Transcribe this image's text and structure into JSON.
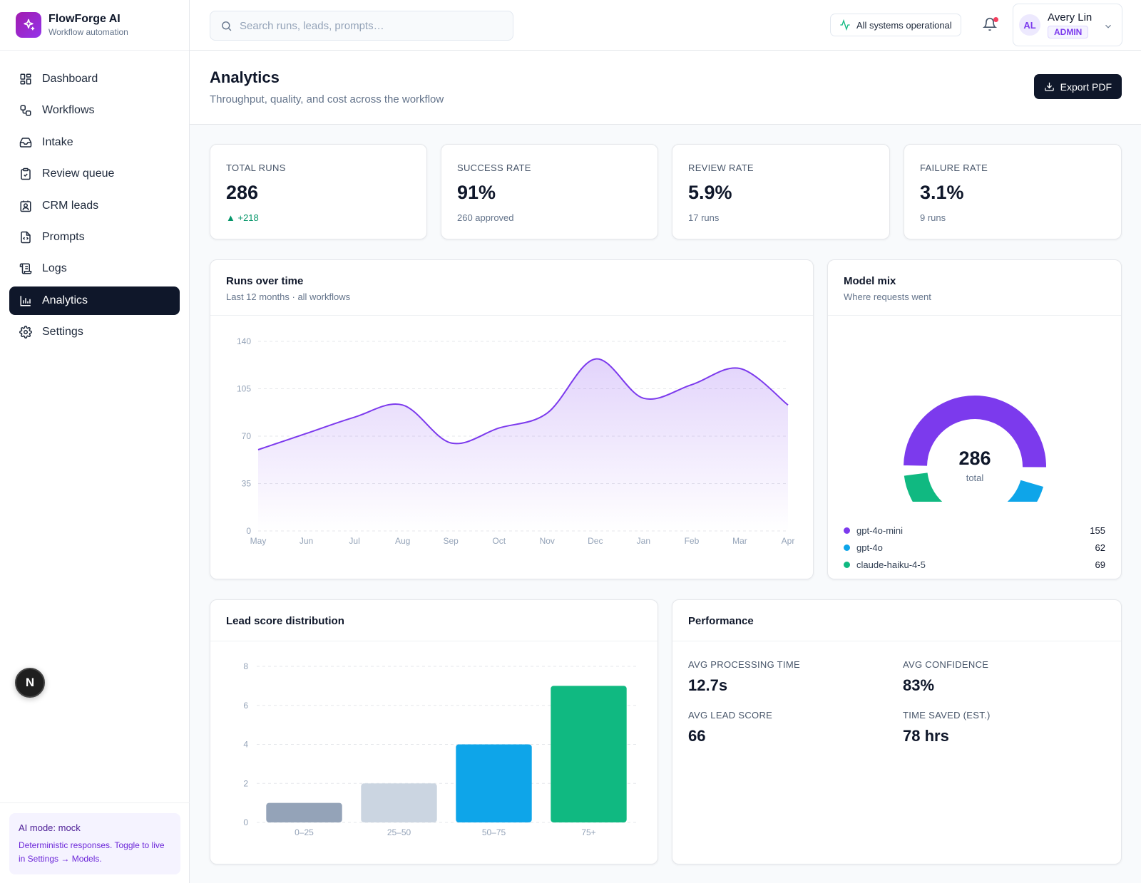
{
  "brand": {
    "name": "FlowForge AI",
    "subtitle": "Workflow automation"
  },
  "sidebar": {
    "items": [
      {
        "label": "Dashboard",
        "icon": "dashboard-icon"
      },
      {
        "label": "Workflows",
        "icon": "workflow-icon"
      },
      {
        "label": "Intake",
        "icon": "inbox-icon"
      },
      {
        "label": "Review queue",
        "icon": "clipboard-check-icon"
      },
      {
        "label": "CRM leads",
        "icon": "contact-icon"
      },
      {
        "label": "Prompts",
        "icon": "file-code-icon"
      },
      {
        "label": "Logs",
        "icon": "scroll-icon"
      },
      {
        "label": "Analytics",
        "icon": "bar-chart-icon",
        "active": true
      },
      {
        "label": "Settings",
        "icon": "gear-icon"
      }
    ],
    "fab_label": "N",
    "ai_mode": {
      "title": "AI mode: mock",
      "description": "Deterministic responses. Toggle to live in Settings → Models."
    }
  },
  "topbar": {
    "search_placeholder": "Search runs, leads, prompts…",
    "status": "All systems operational",
    "notifications_unread": true,
    "user": {
      "initials": "AL",
      "name": "Avery Lin",
      "role": "ADMIN"
    }
  },
  "page": {
    "title": "Analytics",
    "subtitle": "Throughput, quality, and cost across the workflow",
    "export_label": "Export PDF"
  },
  "kpis": [
    {
      "label": "TOTAL RUNS",
      "value": "286",
      "sub": "▲ +218",
      "trend": "up"
    },
    {
      "label": "SUCCESS RATE",
      "value": "91%",
      "sub": "260 approved"
    },
    {
      "label": "REVIEW RATE",
      "value": "5.9%",
      "sub": "17 runs"
    },
    {
      "label": "FAILURE RATE",
      "value": "3.1%",
      "sub": "9 runs"
    }
  ],
  "runs_card": {
    "title": "Runs over time",
    "subtitle": "Last 12 months · all workflows"
  },
  "model_card": {
    "title": "Model mix",
    "subtitle": "Where requests went",
    "center_value": "286",
    "center_label": "total"
  },
  "lead_card": {
    "title": "Lead score distribution"
  },
  "performance": {
    "title": "Performance",
    "items": [
      {
        "label": "AVG PROCESSING TIME",
        "value": "12.7s"
      },
      {
        "label": "AVG CONFIDENCE",
        "value": "83%"
      },
      {
        "label": "AVG LEAD SCORE",
        "value": "66"
      },
      {
        "label": "TIME SAVED (EST.)",
        "value": "78 hrs"
      }
    ]
  },
  "colors": {
    "accent": "#7c3aed",
    "blue": "#0ea5e9",
    "green": "#10b981",
    "navy": "#0f172a"
  },
  "chart_data": [
    {
      "type": "area",
      "categories": [
        "May",
        "Jun",
        "Jul",
        "Aug",
        "Sep",
        "Oct",
        "Nov",
        "Dec",
        "Jan",
        "Feb",
        "Mar",
        "Apr"
      ],
      "values": [
        60,
        72,
        84,
        93,
        65,
        76,
        87,
        127,
        98,
        108,
        120,
        93
      ],
      "ylim": [
        0,
        140
      ],
      "yticks": [
        0,
        35,
        70,
        105,
        140
      ],
      "grid": true,
      "color": "#7c3aed"
    },
    {
      "type": "pie",
      "donut": true,
      "labels": [
        "gpt-4o-mini",
        "gpt-4o",
        "claude-haiku-4-5"
      ],
      "values": [
        155,
        62,
        69
      ],
      "colors": [
        "#7c3aed",
        "#0ea5e9",
        "#10b981"
      ]
    },
    {
      "type": "bar",
      "categories": [
        "0–25",
        "25–50",
        "50–75",
        "75+"
      ],
      "values": [
        1,
        2,
        4,
        7
      ],
      "ylim": [
        0,
        8
      ],
      "yticks": [
        0,
        2,
        4,
        6,
        8
      ],
      "grid": true,
      "colors": [
        "#94a3b8",
        "#cbd5e1",
        "#0ea5e9",
        "#10b981"
      ]
    }
  ]
}
